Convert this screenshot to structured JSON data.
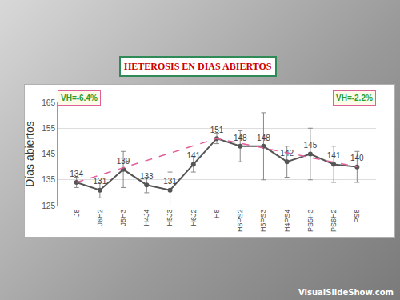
{
  "chart_data": {
    "type": "line",
    "title": "HETEROSIS EN DIAS ABIERTOS",
    "y_label": "Días abiertos",
    "categories": [
      "J8",
      "J6H2",
      "J5H3",
      "H4J4",
      "H5J3",
      "H6J2",
      "H8",
      "H6PS2",
      "H5PS3",
      "H4PS4",
      "PS5H3",
      "PS6H2",
      "PS8"
    ],
    "series": [
      {
        "color": "#555555",
        "marker": "circle",
        "line_style": "solid",
        "values": [
          134,
          131,
          139,
          133,
          131,
          141,
          151,
          148,
          148,
          142,
          145,
          141,
          140
        ],
        "error": [
          2,
          3,
          7,
          3,
          7,
          3,
          2,
          6,
          13,
          6,
          10,
          7,
          6
        ]
      },
      {
        "color": "#e0609a",
        "marker": "none",
        "line_style": "dashed",
        "values": [
          134,
          null,
          null,
          null,
          null,
          null,
          151,
          null,
          null,
          null,
          null,
          null,
          140
        ]
      }
    ],
    "ylim": [
      125,
      165
    ],
    "yticks": [
      125,
      135,
      145,
      155,
      165
    ],
    "grid": true,
    "data_labels": true,
    "annotations": [
      "VH=-6.4%",
      "VH=-2.2%"
    ],
    "footer": "VisualSlideShow.com"
  }
}
